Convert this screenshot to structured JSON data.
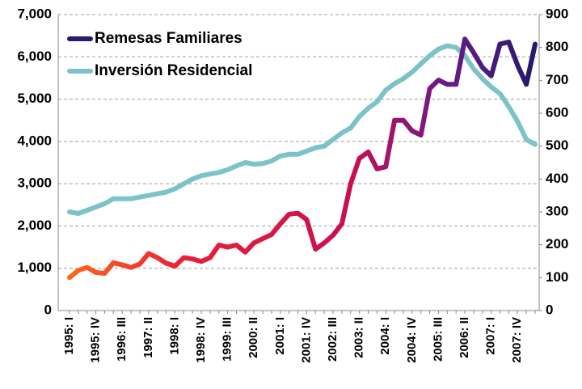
{
  "chart_data": {
    "type": "line",
    "categories": [
      "1995: I",
      null,
      null,
      "1995: IV",
      null,
      null,
      "1996: III",
      null,
      null,
      "1997: II",
      null,
      null,
      "1998: I",
      null,
      null,
      "1998: IV",
      null,
      null,
      "1999: III",
      null,
      null,
      "2000: II",
      null,
      null,
      "2001: I",
      null,
      null,
      "2001: IV",
      null,
      null,
      "2002: III",
      null,
      null,
      "2003: II",
      null,
      null,
      "2004: I",
      null,
      null,
      "2004: IV",
      null,
      null,
      "2005: III",
      null,
      null,
      "2006: II",
      null,
      null,
      "2007: I",
      null,
      null,
      "2007: IV",
      null,
      null
    ],
    "series": [
      {
        "name": "Remesas Familiares",
        "color": "#2a1b6e",
        "values": [
          780,
          950,
          1020,
          900,
          880,
          1130,
          1080,
          1020,
          1100,
          1350,
          1250,
          1120,
          1050,
          1250,
          1220,
          1160,
          1250,
          1550,
          1500,
          1550,
          1380,
          1600,
          1700,
          1800,
          2050,
          2280,
          2300,
          2150,
          1450,
          1600,
          1780,
          2050,
          3000,
          3600,
          3750,
          3350,
          3400,
          4500,
          4500,
          4250,
          4150,
          5250,
          5450,
          5350,
          5350,
          6420,
          6100,
          5750,
          5550,
          6300,
          6350,
          5800,
          5350,
          6300
        ]
      },
      {
        "name": "Inversión Residencial",
        "color": "#7cc3c8",
        "axis": "y2",
        "values": [
          300,
          295,
          305,
          315,
          325,
          340,
          340,
          340,
          345,
          350,
          355,
          360,
          370,
          385,
          400,
          410,
          415,
          420,
          428,
          440,
          450,
          445,
          447,
          455,
          470,
          475,
          475,
          485,
          495,
          500,
          520,
          540,
          555,
          590,
          615,
          635,
          670,
          690,
          705,
          725,
          750,
          775,
          795,
          805,
          800,
          775,
          735,
          705,
          680,
          660,
          620,
          575,
          520,
          505
        ]
      }
    ],
    "ylim": [
      0,
      7000
    ],
    "yticks": [
      0,
      {
        "value": 1000,
        "label": "1,000"
      },
      {
        "value": 2000,
        "label": "2,000"
      },
      {
        "value": 3000,
        "label": "3,000"
      },
      {
        "value": 4000,
        "label": "4,000"
      },
      {
        "value": 5000,
        "label": "5,000"
      },
      {
        "value": 6000,
        "label": "6,000"
      },
      {
        "value": 7000,
        "label": "7,000"
      }
    ],
    "y2lim": [
      0,
      900
    ],
    "y2ticks": [
      0,
      100,
      200,
      300,
      400,
      500,
      600,
      700,
      800,
      900
    ],
    "grid": true,
    "legend": "upper left"
  }
}
